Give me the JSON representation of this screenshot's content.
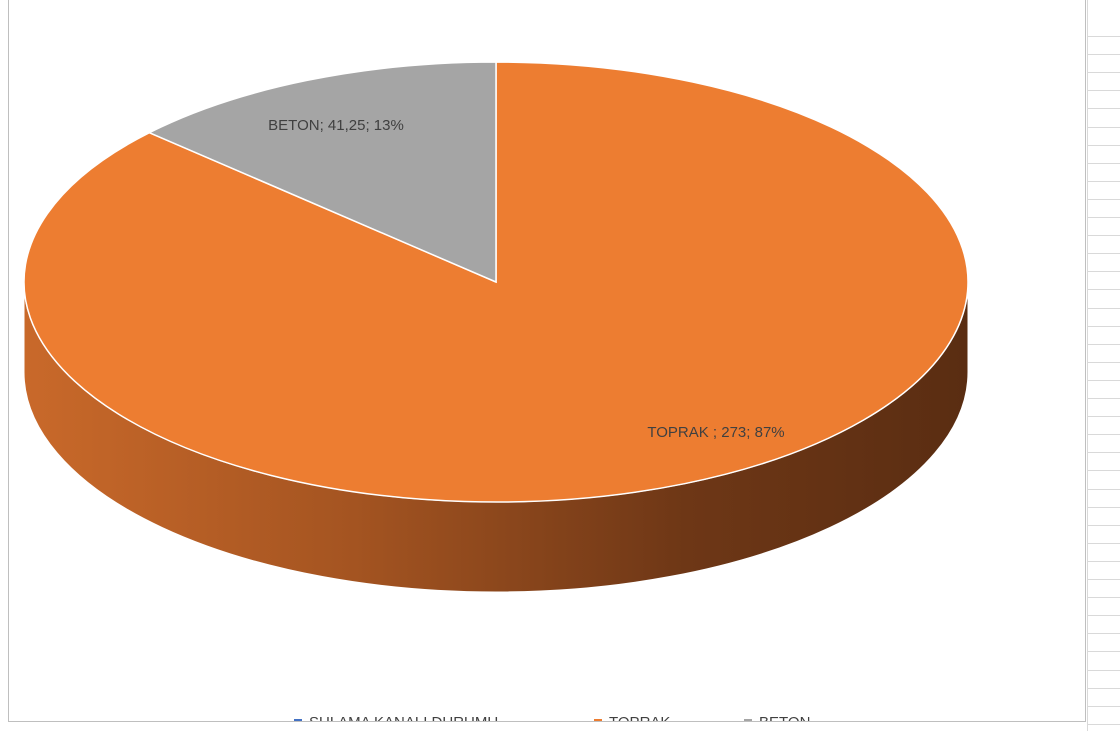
{
  "chart_data": {
    "type": "pie",
    "style": "3d",
    "categories": [
      "SULAMA KANALI DURUMU",
      "TOPRAK",
      "BETON"
    ],
    "values": [
      0,
      273,
      41.25
    ],
    "percentages": [
      0,
      87,
      13
    ],
    "data_labels": [
      "",
      "TOPRAK ; 273; 87%",
      "BETON; 41,25; 13%"
    ],
    "colors": [
      "#4472C4",
      "#ED7D31",
      "#A5A5A5"
    ],
    "legend_position": "bottom",
    "legend": [
      "SULAMA KANALI DURUMU",
      "TOPRAK",
      "BETON"
    ]
  }
}
